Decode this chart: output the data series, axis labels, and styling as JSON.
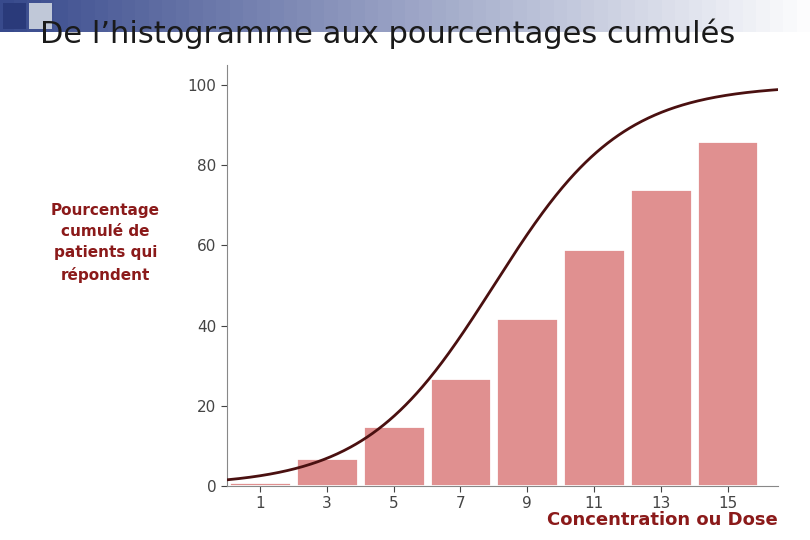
{
  "title": "De l’histogramme aux pourcentages cumulés",
  "ylabel": "Pourcentage\ncumulé de\npatients qui\nrépondent",
  "xlabel": "Concentration ou Dose",
  "bar_categories": [
    1,
    3,
    5,
    7,
    9,
    11,
    13,
    15
  ],
  "bar_heights": [
    1,
    7,
    15,
    27,
    42,
    59,
    74,
    86
  ],
  "bar_color": "#e09090",
  "bar_edge_color": "#ffffff",
  "curve_color": "#4a1010",
  "title_color": "#1a1a1a",
  "label_color": "#8b1a1a",
  "background_color": "#ffffff",
  "header_color_left": "#3a4a8a",
  "header_color_right": "#c8d0e0",
  "ylim": [
    0,
    105
  ],
  "yticks": [
    0,
    20,
    40,
    60,
    80,
    100
  ],
  "xlim": [
    0,
    16.5
  ],
  "title_fontsize": 22,
  "label_fontsize": 11,
  "axis_tick_fontsize": 11,
  "xlabel_fontsize": 13,
  "curve_x0": 8.0,
  "curve_k": 0.52
}
